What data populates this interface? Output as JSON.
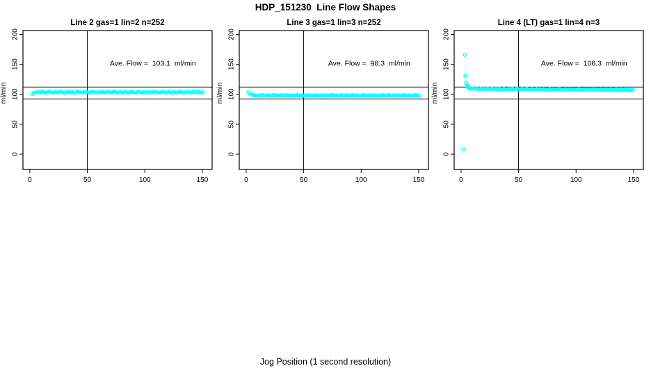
{
  "title": "HDP_151230  Line Flow Shapes",
  "xlabel": "Jog Position (1 second resolution)",
  "chart_data": {
    "type": "scatter",
    "point_style": "open-circle",
    "point_color": "#00FFFF",
    "axis_color": "#000000",
    "background": "#FFFFFF",
    "ylabel": "ml/min",
    "x_ticks": [
      0,
      50,
      100,
      150
    ],
    "y_ticks": [
      0,
      50,
      100,
      150,
      200
    ],
    "xlim": [
      -6,
      158.5
    ],
    "ylim": [
      -25.5,
      206.4
    ],
    "grid": false,
    "vline_x": 50,
    "ref_lines_y": [
      112,
      92
    ],
    "ave_text_pos": [
      107,
      148
    ],
    "panels": [
      {
        "title": "Line 2 gas=1 lin=2 n=252",
        "ave_flow": 103.1,
        "ave_flow_label": "Ave. Flow =  103.1  ml/min",
        "n": 252,
        "band": {
          "x0": 2,
          "dx": 1.5,
          "y": [
            100.4,
            102.3,
            103.0,
            103.6,
            102.8,
            103.9,
            104.2,
            103.1,
            102.5,
            103.8,
            104.4,
            103.3,
            102.7,
            103.5,
            104.1,
            102.9,
            103.7,
            104.3,
            103.0,
            102.6,
            103.9,
            103.4,
            102.8,
            104.0,
            103.2,
            102.5,
            103.8,
            104.2,
            103.1,
            102.9,
            103.6,
            104.4,
            103.0,
            102.7,
            103.9,
            103.3,
            104.1,
            102.8,
            103.5,
            102.6,
            103.8,
            104.0,
            103.1,
            102.9,
            104.3,
            103.4,
            102.7,
            103.7,
            104.1,
            103.0,
            102.8,
            103.9,
            103.5,
            102.6,
            104.2,
            103.2,
            102.9,
            103.8,
            104.0,
            103.1,
            102.7,
            103.6,
            104.3,
            103.3,
            102.8,
            103.9,
            103.0,
            104.1,
            102.6,
            103.5,
            103.8,
            102.9,
            104.2,
            103.2,
            102.7,
            103.7,
            104.0,
            103.1,
            102.8,
            103.9,
            103.4,
            102.6,
            104.1,
            103.0,
            102.9,
            103.6,
            104.2,
            103.3,
            102.7,
            103.8,
            103.1,
            104.0,
            102.8,
            103.5,
            103.9,
            102.9,
            104.1,
            103.2,
            102.8,
            103.6
          ]
        },
        "extra_points": []
      },
      {
        "title": "Line 3 gas=1 lin=3 n=252",
        "ave_flow": 98.3,
        "ave_flow_label": "Ave. Flow =  98.3  ml/min",
        "n": 252,
        "band": {
          "x0": 2,
          "dx": 1.5,
          "y": [
            103.4,
            100.6,
            99.2,
            98.6,
            98.1,
            97.8,
            98.4,
            97.5,
            98.9,
            98.2,
            97.6,
            98.7,
            98.0,
            97.4,
            98.5,
            98.9,
            97.7,
            98.3,
            97.9,
            98.6,
            98.1,
            97.5,
            98.8,
            98.2,
            97.7,
            98.4,
            98.0,
            97.6,
            98.9,
            98.3,
            97.8,
            98.5,
            98.1,
            97.5,
            98.7,
            98.2,
            97.9,
            98.4,
            97.6,
            98.8,
            98.0,
            97.7,
            98.5,
            98.2,
            97.8,
            98.6,
            98.1,
            97.5,
            98.9,
            98.3,
            97.7,
            98.4,
            98.0,
            97.6,
            98.7,
            98.2,
            97.9,
            98.5,
            98.1,
            97.4,
            98.8,
            98.3,
            97.8,
            98.6,
            98.0,
            97.6,
            98.4,
            98.9,
            97.7,
            98.2,
            98.5,
            97.9,
            98.1,
            98.7,
            97.5,
            98.3,
            98.0,
            97.8,
            98.6,
            98.2,
            97.6,
            98.9,
            98.1,
            97.7,
            98.4,
            98.3,
            97.9,
            98.5,
            98.0,
            97.6,
            98.8,
            98.2,
            97.8,
            98.4,
            98.1,
            97.5,
            98.6,
            98.3,
            97.9,
            98.2
          ]
        },
        "extra_points": []
      },
      {
        "title": "Line 4 (LT) gas=1 lin=4 n=3",
        "ave_flow": 106.3,
        "ave_flow_label": "Ave. Flow =  106.3  ml/min",
        "n": 3,
        "band": {
          "x0": 9,
          "dx": 1.42,
          "y": [
            109.8,
            109.2,
            110.1,
            108.8,
            109.5,
            108.4,
            109.9,
            108.9,
            109.4,
            108.2,
            109.7,
            108.6,
            109.1,
            110.0,
            108.5,
            109.3,
            108.0,
            109.6,
            108.8,
            108.3,
            109.4,
            108.7,
            107.9,
            109.2,
            108.5,
            109.8,
            108.2,
            108.9,
            109.5,
            107.8,
            108.6,
            109.3,
            108.1,
            108.8,
            109.6,
            107.7,
            108.4,
            109.1,
            108.7,
            107.9,
            109.3,
            108.2,
            108.8,
            107.6,
            109.0,
            108.5,
            107.8,
            108.3,
            109.2,
            107.7,
            108.9,
            108.1,
            107.5,
            108.6,
            109.1,
            107.9,
            108.4,
            107.6,
            108.8,
            108.0,
            107.4,
            108.7,
            108.2,
            107.8,
            108.5,
            107.3,
            108.9,
            107.7,
            108.1,
            107.5,
            108.6,
            107.9,
            107.2,
            108.3,
            107.8,
            108.8,
            107.4,
            107.9,
            108.2,
            106.9,
            107.6,
            108.4,
            107.1,
            107.8,
            108.0,
            106.8,
            107.5,
            108.1,
            107.3,
            106.9,
            107.7,
            107.2,
            106.7,
            107.9,
            107.4,
            106.8,
            107.6,
            107.0,
            106.6,
            107.3
          ]
        },
        "extra_points": [
          [
            2.4,
            8
          ],
          [
            3.2,
            166
          ],
          [
            3.8,
            131
          ],
          [
            4.4,
            119
          ],
          [
            4.9,
            116
          ],
          [
            5.4,
            113.5
          ],
          [
            5.9,
            112
          ],
          [
            6.6,
            110.8
          ],
          [
            7.3,
            110
          ],
          [
            8.1,
            109.6
          ]
        ]
      }
    ]
  }
}
